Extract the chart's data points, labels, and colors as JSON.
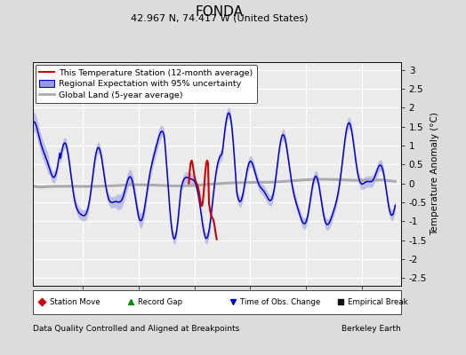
{
  "title": "FONDA",
  "subtitle": "42.967 N, 74.417 W (United States)",
  "ylabel": "Temperature Anomaly (°C)",
  "xlabel_left": "Data Quality Controlled and Aligned at Breakpoints",
  "xlabel_right": "Berkeley Earth",
  "ylim": [
    -2.7,
    3.2
  ],
  "xlim": [
    1930.5,
    1963.5
  ],
  "xticks": [
    1935,
    1940,
    1945,
    1950,
    1955,
    1960
  ],
  "yticks": [
    -2.5,
    -2,
    -1.5,
    -1,
    -0.5,
    0,
    0.5,
    1,
    1.5,
    2,
    2.5,
    3
  ],
  "bg_color": "#dcdcdc",
  "plot_bg_color": "#ebebeb",
  "blue_line_color": "#0000cc",
  "blue_band_color": "#9999dd",
  "red_line_color": "#cc0000",
  "gray_line_color": "#aaaaaa",
  "legend_labels": [
    "This Temperature Station (12-month average)",
    "Regional Expectation with 95% uncertainty",
    "Global Land (5-year average)"
  ],
  "bottom_legend": [
    {
      "label": "Station Move",
      "color": "#cc0000",
      "marker": "D"
    },
    {
      "label": "Record Gap",
      "color": "#008800",
      "marker": "^"
    },
    {
      "label": "Time of Obs. Change",
      "color": "#0000cc",
      "marker": "v"
    },
    {
      "label": "Empirical Break",
      "color": "#111111",
      "marker": "s"
    }
  ]
}
